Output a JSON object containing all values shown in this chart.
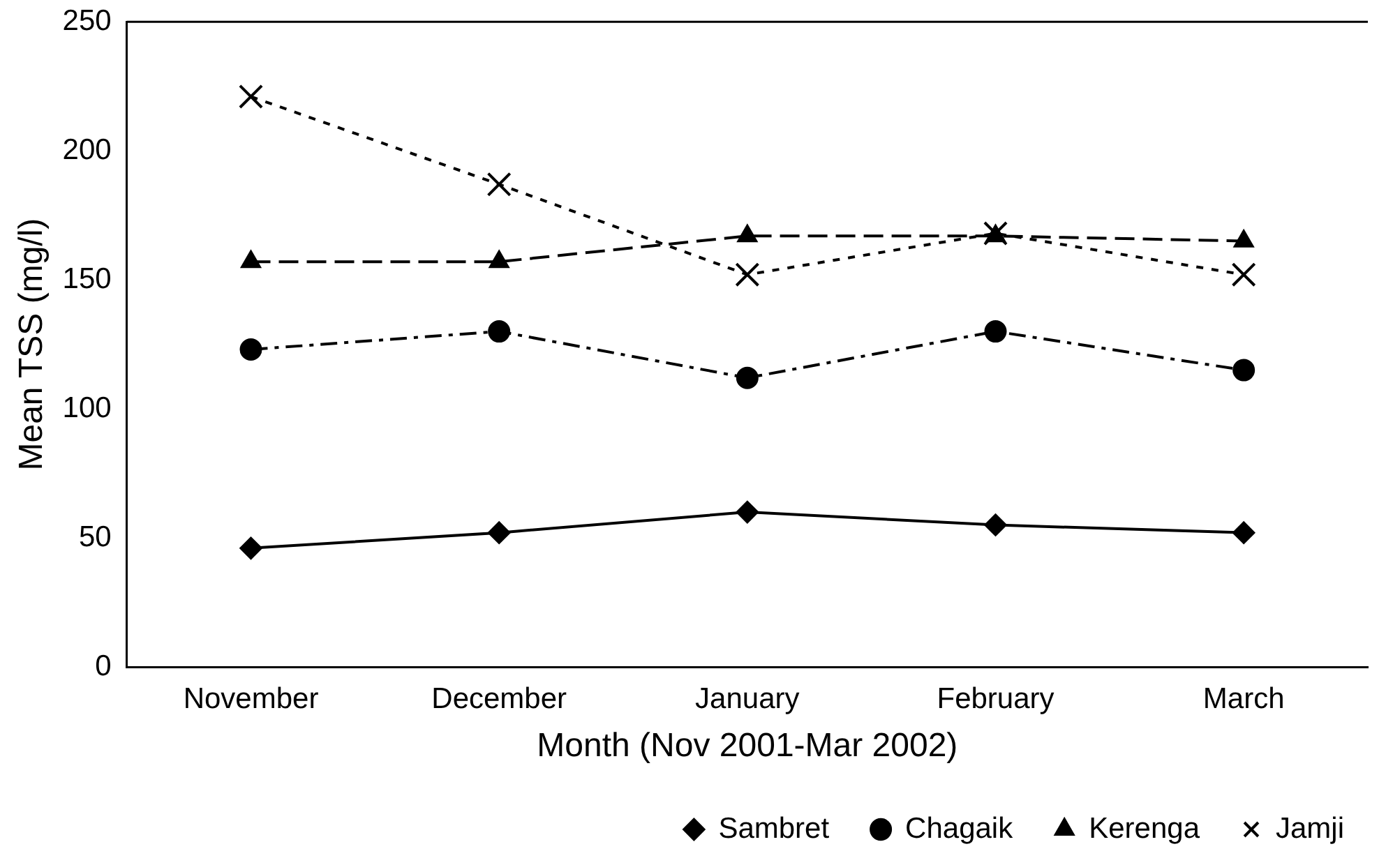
{
  "chart_data": {
    "type": "line",
    "xlabel": "Month (Nov 2001-Mar 2002)",
    "ylabel": "Mean TSS (mg/l)",
    "categories": [
      "November",
      "December",
      "January",
      "February",
      "March"
    ],
    "ylim": [
      0,
      250
    ],
    "yticks": [
      0,
      50,
      100,
      150,
      200,
      250
    ],
    "grid": false,
    "legend": "bottom",
    "series": [
      {
        "name": "Sambret",
        "color": "#000000",
        "marker": "diamond",
        "line_style": "solid",
        "values": [
          46,
          52,
          60,
          55,
          52
        ]
      },
      {
        "name": "Chagaik",
        "color": "#000000",
        "marker": "circle",
        "line_style": "dashdot",
        "values": [
          123,
          130,
          112,
          130,
          115
        ]
      },
      {
        "name": "Kerenga",
        "color": "#000000",
        "marker": "triangle",
        "line_style": "dashed",
        "values": [
          157,
          157,
          167,
          167,
          165
        ]
      },
      {
        "name": "Jamji",
        "color": "#000000",
        "marker": "cross",
        "line_style": "dotted",
        "values": [
          221,
          187,
          152,
          168,
          152
        ]
      }
    ]
  }
}
